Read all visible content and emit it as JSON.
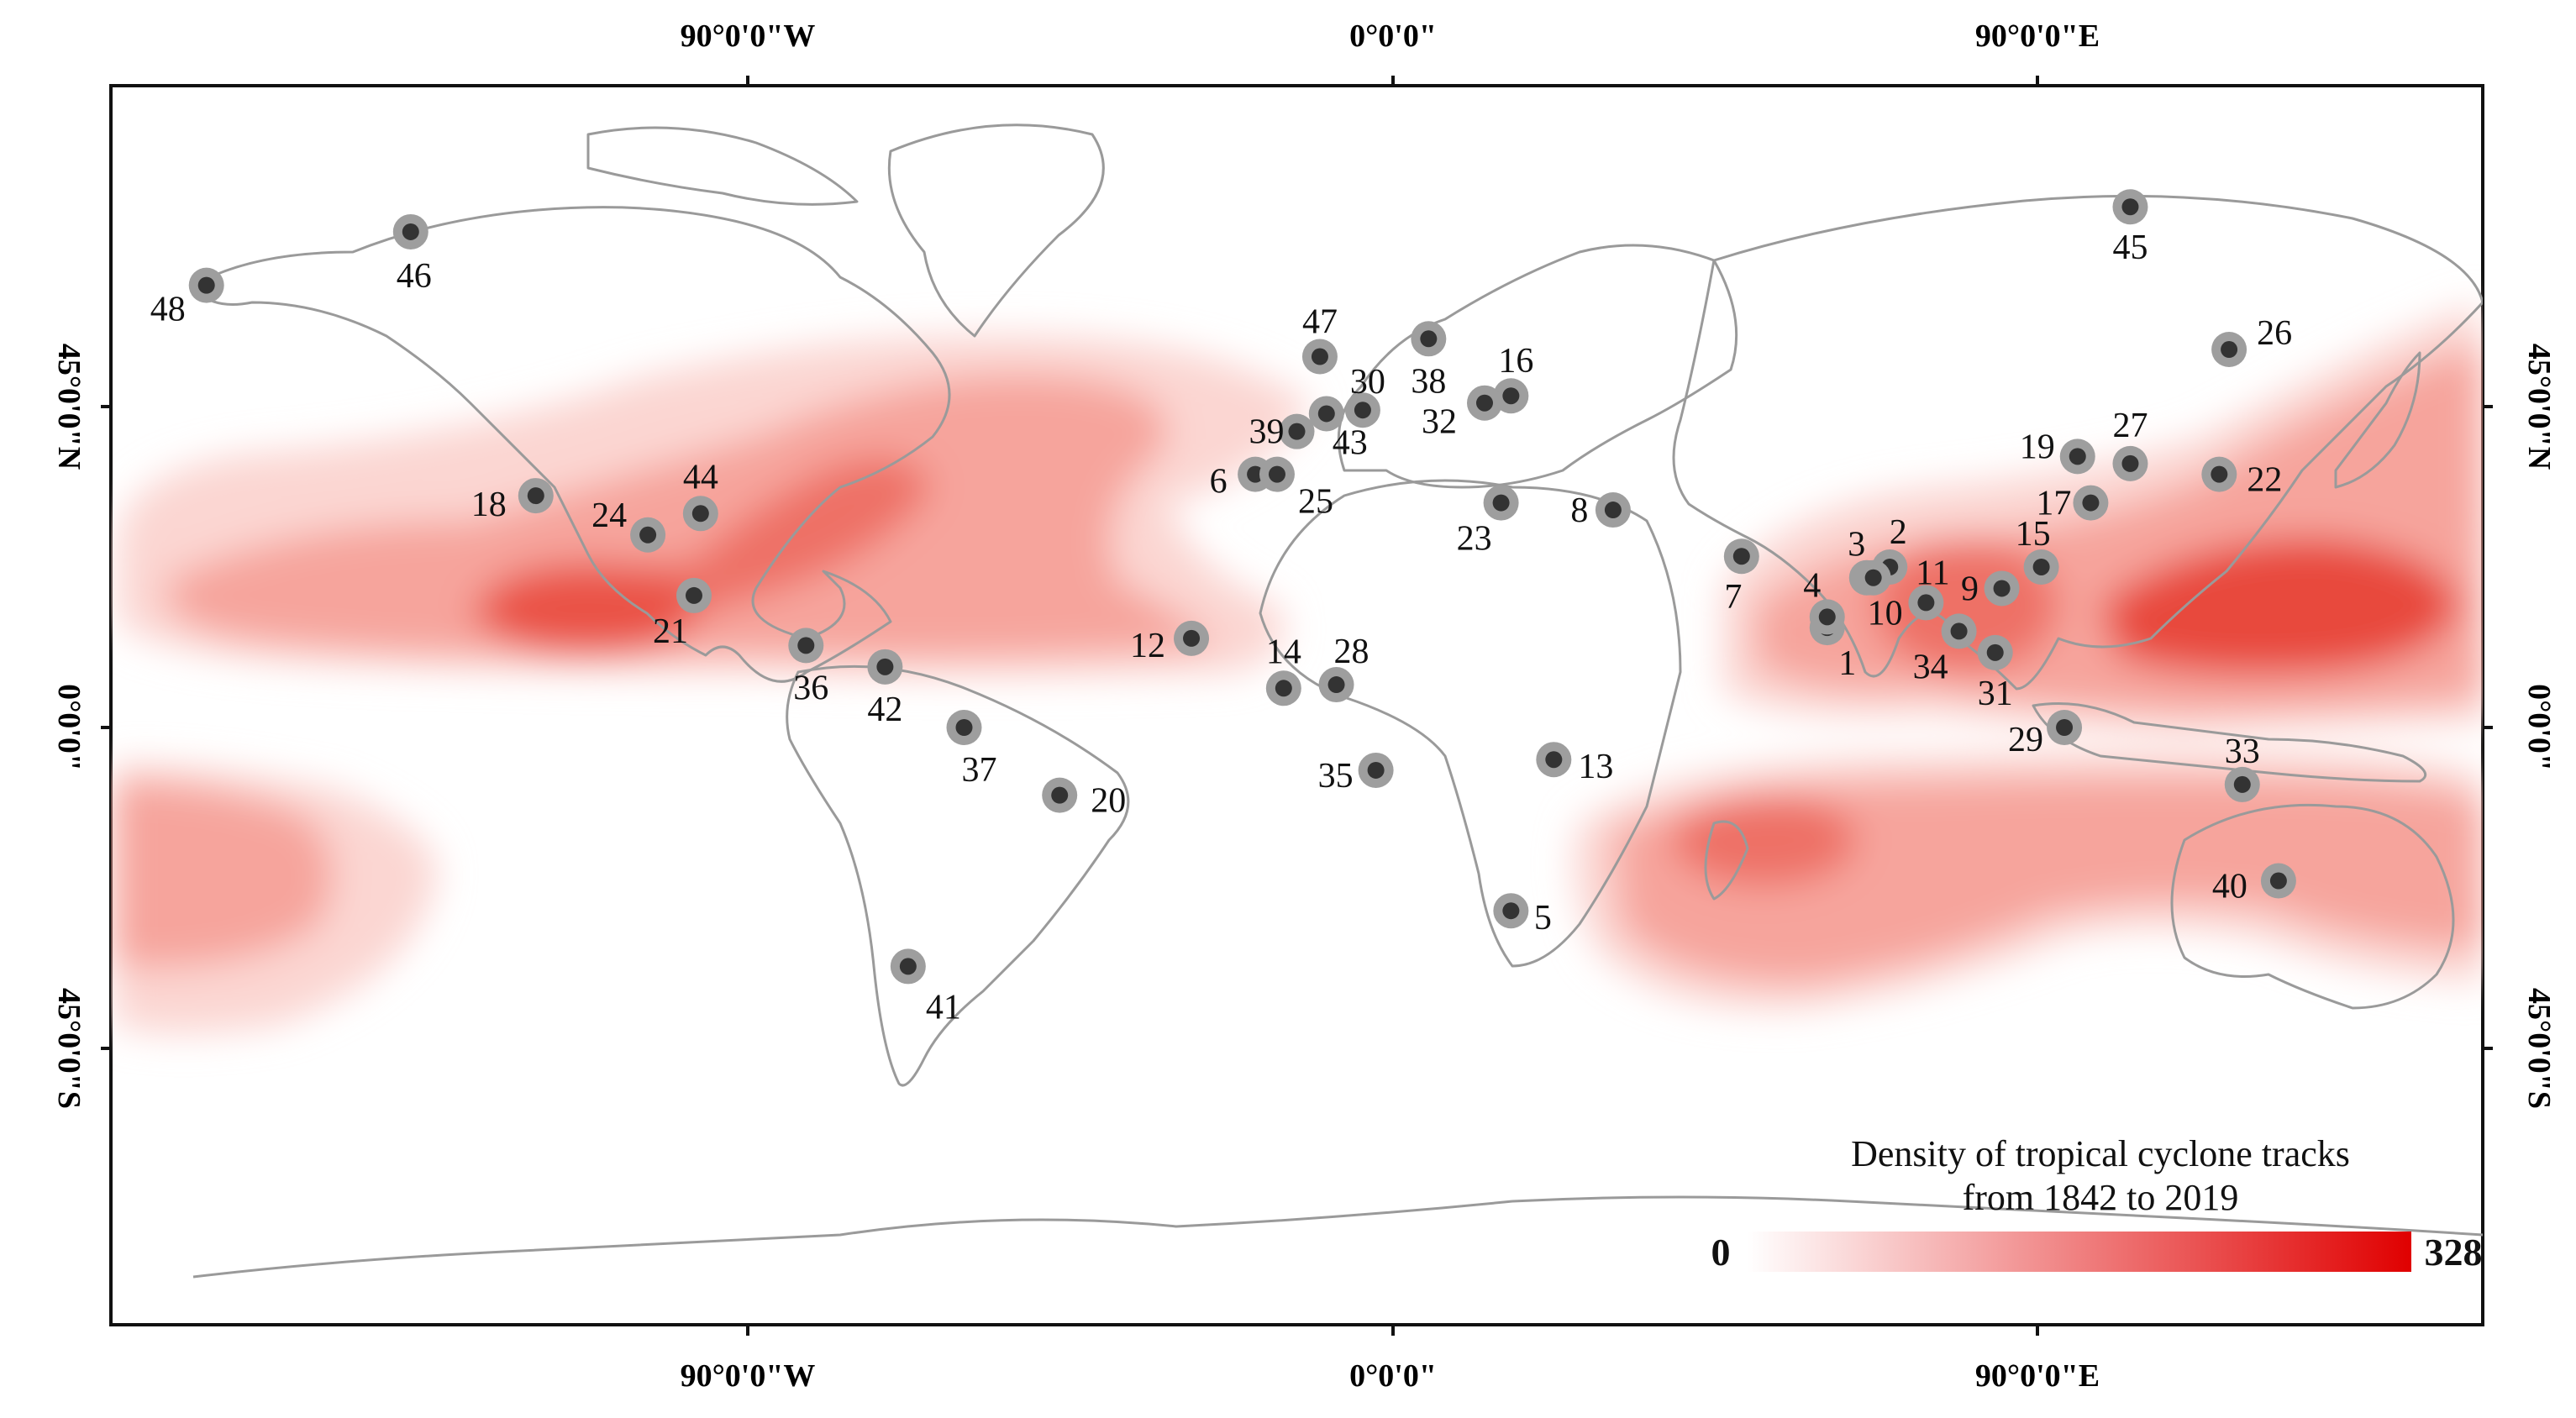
{
  "axes": {
    "longitude_labels": [
      "90°0'0\"W",
      "0°0'0\"",
      "90°0'0\"E"
    ],
    "latitude_labels": [
      "45°0'0\"N",
      "0°0'0\"",
      "45°0'0\"S"
    ]
  },
  "legend": {
    "title_line1": "Density of tropical cyclone tracks",
    "title_line2": "from 1842 to 2019",
    "min_label": "0",
    "max_label": "328",
    "color_low": "#ffffff",
    "color_high": "#e00000"
  },
  "colors": {
    "land_outline": "#9a9a9a",
    "marker_ring": "#9e9e9e",
    "marker_core": "#333333",
    "density": "#e8443a"
  },
  "stations": [
    {
      "id": "1",
      "lon": 80.5,
      "lat": 14.0
    },
    {
      "id": "2",
      "lon": 90.0,
      "lat": 22.5
    },
    {
      "id": "3",
      "lon": 86.5,
      "lat": 21.0
    },
    {
      "id": "4",
      "lon": 80.5,
      "lat": 15.5
    },
    {
      "id": "5",
      "lon": 32.5,
      "lat": -25.7
    },
    {
      "id": "6",
      "lon": -6.3,
      "lat": 35.5
    },
    {
      "id": "7",
      "lon": 67.5,
      "lat": 24.0
    },
    {
      "id": "8",
      "lon": 48.0,
      "lat": 30.5
    },
    {
      "id": "9",
      "lon": 107.0,
      "lat": 19.5
    },
    {
      "id": "10",
      "lon": 87.5,
      "lat": 21.0
    },
    {
      "id": "11",
      "lon": 95.5,
      "lat": 17.5
    },
    {
      "id": "12",
      "lon": -16.0,
      "lat": 12.5
    },
    {
      "id": "13",
      "lon": 39.0,
      "lat": -4.5
    },
    {
      "id": "14",
      "lon": -2.0,
      "lat": 5.5
    },
    {
      "id": "15",
      "lon": 113.0,
      "lat": 22.5
    },
    {
      "id": "16",
      "lon": 32.5,
      "lat": 46.5
    },
    {
      "id": "17",
      "lon": 120.5,
      "lat": 31.5
    },
    {
      "id": "18",
      "lon": -115.5,
      "lat": 32.5
    },
    {
      "id": "19",
      "lon": 118.5,
      "lat": 38.0
    },
    {
      "id": "20",
      "lon": -36.0,
      "lat": -9.5
    },
    {
      "id": "21",
      "lon": -91.5,
      "lat": 18.5
    },
    {
      "id": "22",
      "lon": 140.0,
      "lat": 35.5
    },
    {
      "id": "23",
      "lon": 31.0,
      "lat": 31.5
    },
    {
      "id": "24",
      "lon": -98.5,
      "lat": 27.0
    },
    {
      "id": "25",
      "lon": -3.0,
      "lat": 35.5
    },
    {
      "id": "26",
      "lon": 141.5,
      "lat": 53.0
    },
    {
      "id": "27",
      "lon": 126.5,
      "lat": 37.0
    },
    {
      "id": "28",
      "lon": 6.0,
      "lat": 6.0
    },
    {
      "id": "29",
      "lon": 116.5,
      "lat": 0.0
    },
    {
      "id": "30",
      "lon": 10.0,
      "lat": 44.5
    },
    {
      "id": "31",
      "lon": 106.0,
      "lat": 10.5
    },
    {
      "id": "32",
      "lon": 28.5,
      "lat": 45.5
    },
    {
      "id": "33",
      "lon": 143.5,
      "lat": -8.0
    },
    {
      "id": "34",
      "lon": 100.5,
      "lat": 13.5
    },
    {
      "id": "35",
      "lon": 12.0,
      "lat": -6.0
    },
    {
      "id": "36",
      "lon": -74.5,
      "lat": 11.5
    },
    {
      "id": "37",
      "lon": -50.5,
      "lat": 0.0
    },
    {
      "id": "38",
      "lon": 20.0,
      "lat": 54.5
    },
    {
      "id": "39",
      "lon": 0.0,
      "lat": 41.5
    },
    {
      "id": "40",
      "lon": 149.0,
      "lat": -21.5
    },
    {
      "id": "41",
      "lon": -59.0,
      "lat": -33.5
    },
    {
      "id": "42",
      "lon": -62.5,
      "lat": 8.5
    },
    {
      "id": "43",
      "lon": 4.5,
      "lat": 44.0
    },
    {
      "id": "44",
      "lon": -90.5,
      "lat": 30.0
    },
    {
      "id": "45",
      "lon": 126.5,
      "lat": 73.0
    },
    {
      "id": "46",
      "lon": -134.5,
      "lat": 69.5
    },
    {
      "id": "47",
      "lon": 3.5,
      "lat": 52.0
    },
    {
      "id": "48",
      "lon": -165.5,
      "lat": 62.0
    }
  ]
}
